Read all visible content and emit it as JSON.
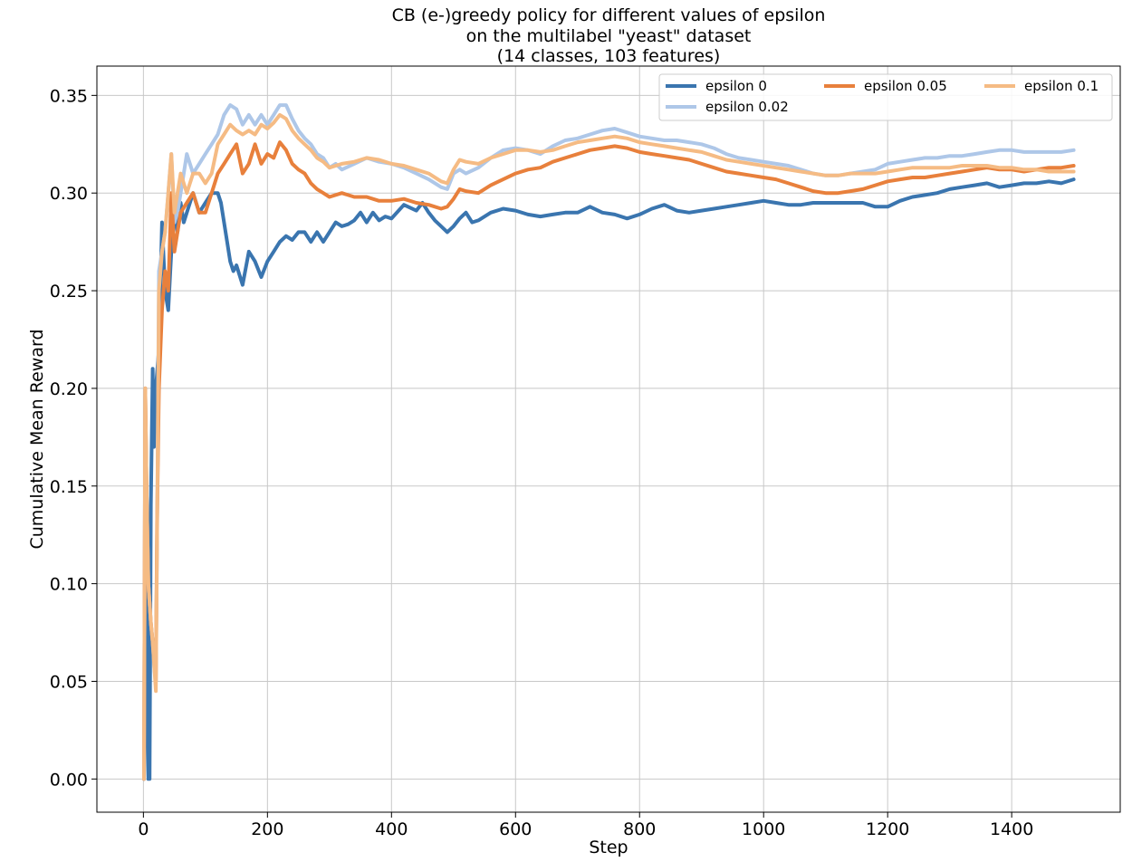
{
  "chart_data": {
    "type": "line",
    "title": [
      "CB (e-)greedy policy for different values of epsilon",
      "on the multilabel \"yeast\" dataset",
      "(14 classes, 103 features)"
    ],
    "xlabel": "Step",
    "ylabel": "Cumulative Mean Reward",
    "xlim": [
      -75,
      1575
    ],
    "ylim": [
      -0.017,
      0.365
    ],
    "xticks": [
      0,
      200,
      400,
      600,
      800,
      1000,
      1200,
      1400
    ],
    "xtick_labels": [
      "0",
      "200",
      "400",
      "600",
      "800",
      "1000",
      "1200",
      "1400"
    ],
    "yticks": [
      0.0,
      0.05,
      0.1,
      0.15,
      0.2,
      0.25,
      0.3,
      0.35
    ],
    "ytick_labels": [
      "0.00",
      "0.05",
      "0.10",
      "0.15",
      "0.20",
      "0.25",
      "0.30",
      "0.35"
    ],
    "grid": true,
    "legend_position": "top-right",
    "series": [
      {
        "name": "epsilon 0",
        "color": "#3a75af",
        "x": [
          1,
          5,
          8,
          10,
          12,
          15,
          17,
          20,
          25,
          30,
          35,
          40,
          45,
          50,
          55,
          60,
          65,
          70,
          80,
          90,
          100,
          110,
          120,
          125,
          130,
          135,
          140,
          145,
          150,
          160,
          170,
          180,
          190,
          200,
          210,
          220,
          230,
          240,
          250,
          260,
          270,
          280,
          290,
          300,
          310,
          320,
          330,
          340,
          350,
          360,
          370,
          380,
          390,
          400,
          420,
          440,
          450,
          460,
          470,
          480,
          490,
          500,
          510,
          520,
          530,
          540,
          560,
          580,
          600,
          620,
          640,
          660,
          680,
          700,
          720,
          740,
          760,
          780,
          800,
          820,
          840,
          860,
          880,
          900,
          920,
          940,
          960,
          980,
          1000,
          1020,
          1040,
          1060,
          1080,
          1100,
          1120,
          1140,
          1160,
          1180,
          1200,
          1220,
          1240,
          1260,
          1280,
          1300,
          1320,
          1340,
          1360,
          1380,
          1400,
          1420,
          1440,
          1460,
          1480,
          1500
        ],
        "y": [
          0.0,
          0.1,
          0.0,
          0.0,
          0.14,
          0.21,
          0.17,
          0.2,
          0.22,
          0.285,
          0.25,
          0.24,
          0.27,
          0.29,
          0.28,
          0.295,
          0.285,
          0.29,
          0.3,
          0.29,
          0.295,
          0.3,
          0.3,
          0.295,
          0.285,
          0.275,
          0.265,
          0.26,
          0.263,
          0.253,
          0.27,
          0.265,
          0.257,
          0.265,
          0.27,
          0.275,
          0.278,
          0.276,
          0.28,
          0.28,
          0.275,
          0.28,
          0.275,
          0.28,
          0.285,
          0.283,
          0.284,
          0.286,
          0.29,
          0.285,
          0.29,
          0.286,
          0.288,
          0.287,
          0.294,
          0.291,
          0.295,
          0.29,
          0.286,
          0.283,
          0.28,
          0.283,
          0.287,
          0.29,
          0.285,
          0.286,
          0.29,
          0.292,
          0.291,
          0.289,
          0.288,
          0.289,
          0.29,
          0.29,
          0.293,
          0.29,
          0.289,
          0.287,
          0.289,
          0.292,
          0.294,
          0.291,
          0.29,
          0.291,
          0.292,
          0.293,
          0.294,
          0.295,
          0.296,
          0.295,
          0.294,
          0.294,
          0.295,
          0.295,
          0.295,
          0.295,
          0.295,
          0.293,
          0.293,
          0.296,
          0.298,
          0.299,
          0.3,
          0.302,
          0.303,
          0.304,
          0.305,
          0.303,
          0.304,
          0.305,
          0.305,
          0.306,
          0.305,
          0.307
        ]
      },
      {
        "name": "epsilon 0.02",
        "color": "#aec7e8",
        "x": [
          1,
          3,
          5,
          8,
          12,
          15,
          18,
          20,
          22,
          25,
          30,
          35,
          40,
          45,
          50,
          55,
          60,
          70,
          80,
          90,
          100,
          110,
          120,
          130,
          140,
          150,
          160,
          170,
          180,
          190,
          200,
          210,
          220,
          230,
          240,
          250,
          260,
          270,
          280,
          290,
          300,
          310,
          320,
          340,
          360,
          380,
          400,
          420,
          440,
          460,
          480,
          490,
          500,
          510,
          520,
          540,
          560,
          580,
          600,
          620,
          640,
          660,
          680,
          700,
          720,
          740,
          760,
          780,
          800,
          820,
          840,
          860,
          880,
          900,
          920,
          940,
          960,
          980,
          1000,
          1020,
          1040,
          1060,
          1080,
          1100,
          1120,
          1140,
          1160,
          1180,
          1200,
          1220,
          1240,
          1260,
          1280,
          1300,
          1320,
          1340,
          1360,
          1380,
          1400,
          1420,
          1440,
          1460,
          1480,
          1500
        ],
        "y": [
          0.0,
          0.2,
          0.15,
          0.1,
          0.08,
          0.07,
          0.055,
          0.05,
          0.12,
          0.26,
          0.27,
          0.28,
          0.3,
          0.32,
          0.285,
          0.29,
          0.3,
          0.32,
          0.31,
          0.315,
          0.32,
          0.325,
          0.33,
          0.34,
          0.345,
          0.343,
          0.335,
          0.34,
          0.335,
          0.34,
          0.335,
          0.34,
          0.345,
          0.345,
          0.338,
          0.332,
          0.328,
          0.325,
          0.32,
          0.318,
          0.313,
          0.315,
          0.312,
          0.315,
          0.318,
          0.316,
          0.315,
          0.313,
          0.31,
          0.307,
          0.303,
          0.302,
          0.31,
          0.312,
          0.31,
          0.313,
          0.318,
          0.322,
          0.323,
          0.322,
          0.32,
          0.324,
          0.327,
          0.328,
          0.33,
          0.332,
          0.333,
          0.331,
          0.329,
          0.328,
          0.327,
          0.327,
          0.326,
          0.325,
          0.323,
          0.32,
          0.318,
          0.317,
          0.316,
          0.315,
          0.314,
          0.312,
          0.31,
          0.309,
          0.309,
          0.31,
          0.311,
          0.312,
          0.315,
          0.316,
          0.317,
          0.318,
          0.318,
          0.319,
          0.319,
          0.32,
          0.321,
          0.322,
          0.322,
          0.321,
          0.321,
          0.321,
          0.321,
          0.322
        ]
      },
      {
        "name": "epsilon 0.05",
        "color": "#e8803c",
        "x": [
          1,
          3,
          5,
          8,
          12,
          15,
          18,
          20,
          22,
          25,
          30,
          35,
          40,
          45,
          50,
          55,
          60,
          70,
          80,
          90,
          100,
          110,
          120,
          130,
          140,
          150,
          160,
          170,
          180,
          190,
          200,
          210,
          220,
          230,
          240,
          250,
          260,
          270,
          280,
          290,
          300,
          320,
          340,
          360,
          380,
          400,
          420,
          440,
          460,
          480,
          490,
          500,
          510,
          520,
          540,
          560,
          580,
          600,
          620,
          640,
          660,
          680,
          700,
          720,
          740,
          760,
          780,
          800,
          820,
          840,
          860,
          880,
          900,
          920,
          940,
          960,
          980,
          1000,
          1020,
          1040,
          1060,
          1080,
          1100,
          1120,
          1140,
          1160,
          1180,
          1200,
          1220,
          1240,
          1260,
          1280,
          1300,
          1320,
          1340,
          1360,
          1380,
          1400,
          1420,
          1440,
          1460,
          1480,
          1500
        ],
        "y": [
          0.0,
          0.2,
          0.15,
          0.1,
          0.08,
          0.07,
          0.06,
          0.05,
          0.13,
          0.2,
          0.24,
          0.26,
          0.25,
          0.3,
          0.27,
          0.28,
          0.29,
          0.295,
          0.3,
          0.29,
          0.29,
          0.3,
          0.31,
          0.315,
          0.32,
          0.325,
          0.31,
          0.315,
          0.325,
          0.315,
          0.32,
          0.318,
          0.326,
          0.322,
          0.315,
          0.312,
          0.31,
          0.305,
          0.302,
          0.3,
          0.298,
          0.3,
          0.298,
          0.298,
          0.296,
          0.296,
          0.297,
          0.295,
          0.294,
          0.292,
          0.293,
          0.297,
          0.302,
          0.301,
          0.3,
          0.304,
          0.307,
          0.31,
          0.312,
          0.313,
          0.316,
          0.318,
          0.32,
          0.322,
          0.323,
          0.324,
          0.323,
          0.321,
          0.32,
          0.319,
          0.318,
          0.317,
          0.315,
          0.313,
          0.311,
          0.31,
          0.309,
          0.308,
          0.307,
          0.305,
          0.303,
          0.301,
          0.3,
          0.3,
          0.301,
          0.302,
          0.304,
          0.306,
          0.307,
          0.308,
          0.308,
          0.309,
          0.31,
          0.311,
          0.312,
          0.313,
          0.312,
          0.312,
          0.311,
          0.312,
          0.313,
          0.313,
          0.314
        ]
      },
      {
        "name": "epsilon 0.1",
        "color": "#f5bb84",
        "x": [
          1,
          3,
          5,
          8,
          12,
          15,
          18,
          20,
          22,
          25,
          30,
          35,
          40,
          45,
          50,
          55,
          60,
          70,
          80,
          90,
          100,
          110,
          120,
          130,
          140,
          150,
          160,
          170,
          180,
          190,
          200,
          210,
          220,
          230,
          240,
          250,
          260,
          270,
          280,
          290,
          300,
          320,
          340,
          360,
          380,
          400,
          420,
          440,
          460,
          480,
          490,
          500,
          510,
          520,
          540,
          560,
          580,
          600,
          620,
          640,
          660,
          680,
          700,
          720,
          740,
          760,
          780,
          800,
          820,
          840,
          860,
          880,
          900,
          920,
          940,
          960,
          980,
          1000,
          1020,
          1040,
          1060,
          1080,
          1100,
          1120,
          1140,
          1160,
          1180,
          1200,
          1220,
          1240,
          1260,
          1280,
          1300,
          1320,
          1340,
          1360,
          1380,
          1400,
          1420,
          1440,
          1460,
          1480,
          1500
        ],
        "y": [
          0.0,
          0.2,
          0.15,
          0.1,
          0.08,
          0.07,
          0.055,
          0.045,
          0.12,
          0.25,
          0.27,
          0.28,
          0.3,
          0.32,
          0.29,
          0.3,
          0.31,
          0.3,
          0.31,
          0.31,
          0.305,
          0.31,
          0.325,
          0.33,
          0.335,
          0.332,
          0.33,
          0.332,
          0.33,
          0.335,
          0.333,
          0.336,
          0.34,
          0.338,
          0.332,
          0.328,
          0.325,
          0.322,
          0.318,
          0.316,
          0.313,
          0.315,
          0.316,
          0.318,
          0.317,
          0.315,
          0.314,
          0.312,
          0.31,
          0.306,
          0.305,
          0.312,
          0.317,
          0.316,
          0.315,
          0.318,
          0.32,
          0.322,
          0.322,
          0.321,
          0.322,
          0.324,
          0.326,
          0.327,
          0.328,
          0.329,
          0.328,
          0.326,
          0.325,
          0.324,
          0.323,
          0.322,
          0.321,
          0.319,
          0.317,
          0.316,
          0.315,
          0.314,
          0.313,
          0.312,
          0.311,
          0.31,
          0.309,
          0.309,
          0.31,
          0.31,
          0.31,
          0.311,
          0.312,
          0.313,
          0.313,
          0.313,
          0.313,
          0.314,
          0.314,
          0.314,
          0.313,
          0.313,
          0.312,
          0.312,
          0.311,
          0.311,
          0.311
        ]
      }
    ]
  },
  "legend_columns": [
    [
      "epsilon 0",
      "epsilon 0.02"
    ],
    [
      "epsilon 0.05"
    ],
    [
      "epsilon 0.1"
    ]
  ]
}
